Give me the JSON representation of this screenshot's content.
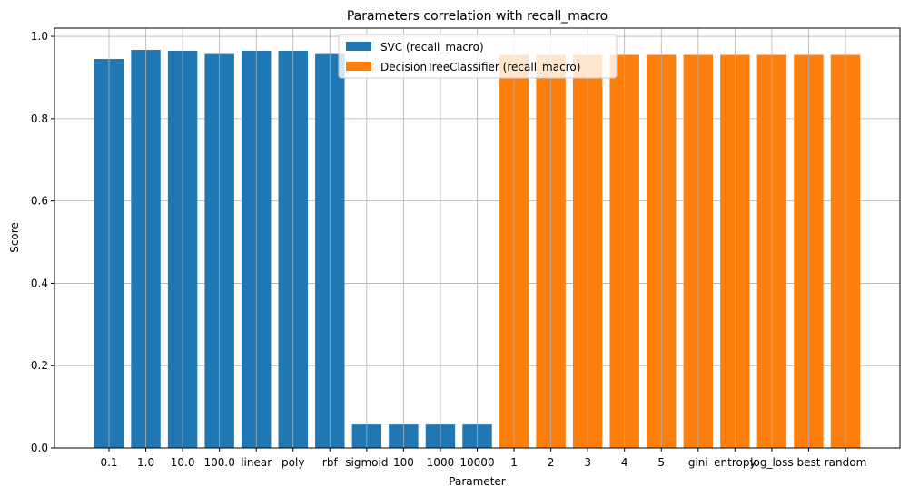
{
  "chart_data": {
    "type": "bar",
    "title": "Parameters correlation with recall_macro",
    "xlabel": "Parameter",
    "ylabel": "Score",
    "ylim": [
      0,
      1.0
    ],
    "yticks": [
      "0.0",
      "0.2",
      "0.4",
      "0.6",
      "0.8",
      "1.0"
    ],
    "grid": true,
    "legend_position": "top-center",
    "categories": [
      "0.1",
      "1.0",
      "10.0",
      "100.0",
      "linear",
      "poly",
      "rbf",
      "sigmoid",
      "100",
      "1000",
      "10000",
      "1",
      "2",
      "3",
      "4",
      "5",
      "gini",
      "entropy",
      "log_loss",
      "best",
      "random"
    ],
    "series": [
      {
        "name": "SVC (recall_macro)",
        "color": "#1f77b4",
        "values": [
          0.945,
          0.967,
          0.965,
          0.957,
          0.965,
          0.965,
          0.957,
          0.057,
          0.057,
          0.057,
          0.057,
          null,
          null,
          null,
          null,
          null,
          null,
          null,
          null,
          null,
          null
        ]
      },
      {
        "name": "DecisionTreeClassifier (recall_macro)",
        "color": "#ff7f0e",
        "values": [
          null,
          null,
          null,
          null,
          null,
          null,
          null,
          null,
          null,
          null,
          null,
          0.955,
          0.955,
          0.955,
          0.955,
          0.955,
          0.955,
          0.955,
          0.955,
          0.955,
          0.955
        ]
      }
    ]
  }
}
